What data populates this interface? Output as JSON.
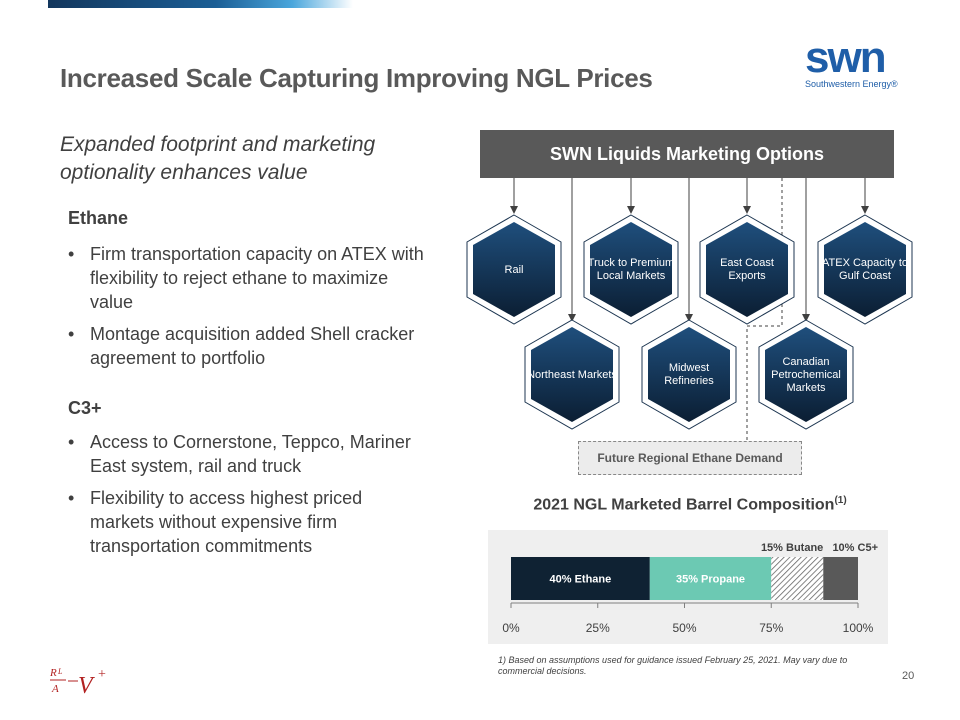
{
  "header": {
    "title": "Increased Scale Capturing Improving NGL Prices",
    "logo_mark": "swn",
    "logo_text": "Southwestern Energy®"
  },
  "left": {
    "subtitle": "Expanded footprint and marketing optionality enhances value",
    "sections": [
      {
        "heading": "Ethane",
        "bullets": [
          "Firm transportation capacity on ATEX with flexibility to reject ethane to maximize  value",
          "Montage acquisition added Shell cracker agreement to portfolio"
        ]
      },
      {
        "heading": "C3+",
        "bullets": [
          "Access to Cornerstone, Teppco, Mariner East system, rail and truck",
          "Flexibility to access highest priced markets without expensive firm transportation commitments"
        ]
      }
    ]
  },
  "diagram": {
    "banner": "SWN Liquids Marketing Options",
    "top_row": [
      "Rail",
      "Truck to Premium Local Markets",
      "East Coast Exports",
      "ATEX Capacity to Gulf Coast"
    ],
    "bottom_row": [
      "Northeast Markets",
      "Midwest Refineries",
      "Canadian Petrochemical Markets"
    ],
    "future_box": "Future Regional Ethane Demand"
  },
  "chart_data": {
    "type": "bar",
    "orientation": "horizontal-stacked",
    "title": "2021 NGL Marketed Barrel Composition",
    "title_superscript": "(1)",
    "segments": [
      {
        "name": "Ethane",
        "value": 40,
        "label": "40% Ethane",
        "color": "#0f2233"
      },
      {
        "name": "Propane",
        "value": 35,
        "label": "35% Propane",
        "color": "#6cc9b3"
      },
      {
        "name": "Butane",
        "value": 15,
        "label": "15% Butane",
        "color": "#ffffff"
      },
      {
        "name": "C5+",
        "value": 10,
        "label": "10% C5+",
        "color": "#595959"
      }
    ],
    "xlim": [
      0,
      100
    ],
    "ticks": [
      "0%",
      "25%",
      "50%",
      "75%",
      "100%"
    ],
    "tick_values": [
      0,
      25,
      50,
      75,
      100
    ]
  },
  "footnote": "1) Based on assumptions used for guidance issued February 25, 2021. May vary due to commercial decisions.",
  "page_number": "20"
}
